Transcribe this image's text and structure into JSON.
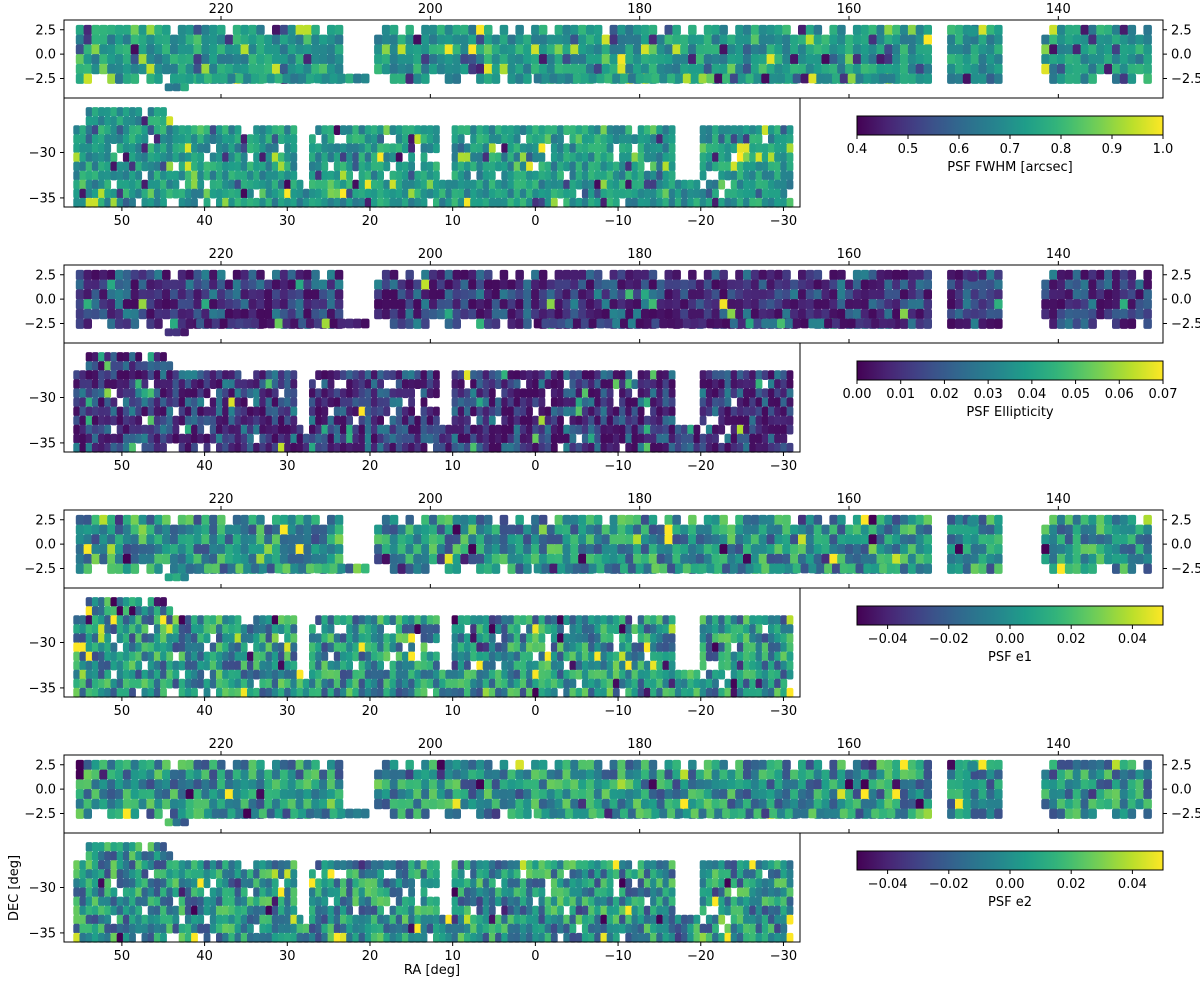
{
  "xlabel": "RA [deg]",
  "ylabel": "DEC [deg]",
  "chart_data": [
    {
      "type": "heatmap",
      "quantity": "PSF FWHM",
      "colorbar": {
        "label": "PSF FWHM [arcsec]",
        "vmin": 0.4,
        "vmax": 1.0,
        "ticks": [
          0.4,
          0.5,
          0.6,
          0.7,
          0.8,
          0.9,
          1.0
        ],
        "tick_labels": [
          "0.4",
          "0.5",
          "0.6",
          "0.7",
          "0.8",
          "0.9",
          "1.0"
        ],
        "colormap": "viridis"
      },
      "north_patch": {
        "xlim": [
          235,
          130
        ],
        "ylim": [
          -4.5,
          3.5
        ],
        "xticks": [
          220,
          200,
          180,
          160,
          140
        ],
        "xtick_labels": [
          "220",
          "200",
          "180",
          "160",
          "140"
        ],
        "yticks": [
          2.5,
          0.0,
          -2.5
        ],
        "ytick_labels": [
          "2.5",
          "0.0",
          "−2.5"
        ]
      },
      "south_patch": {
        "xlim": [
          57,
          -32
        ],
        "ylim": [
          -36,
          -24
        ],
        "xticks": [
          50,
          40,
          30,
          20,
          10,
          0,
          -10,
          -20,
          -30
        ],
        "xtick_labels": [
          "50",
          "40",
          "30",
          "20",
          "10",
          "0",
          "−10",
          "−20",
          "−30"
        ],
        "yticks": [
          -30,
          -35
        ],
        "ytick_labels": [
          "−30",
          "−35"
        ]
      },
      "typical_value": 0.72
    },
    {
      "type": "heatmap",
      "quantity": "PSF Ellipticity",
      "colorbar": {
        "label": "PSF Ellipticity",
        "vmin": 0.0,
        "vmax": 0.07,
        "ticks": [
          0.0,
          0.01,
          0.02,
          0.03,
          0.04,
          0.05,
          0.06,
          0.07
        ],
        "tick_labels": [
          "0.00",
          "0.01",
          "0.02",
          "0.03",
          "0.04",
          "0.05",
          "0.06",
          "0.07"
        ],
        "colormap": "viridis"
      },
      "north_patch": {
        "xlim": [
          235,
          130
        ],
        "ylim": [
          -4.5,
          3.5
        ],
        "xticks": [
          220,
          200,
          180,
          160,
          140
        ],
        "xtick_labels": [
          "220",
          "200",
          "180",
          "160",
          "140"
        ],
        "yticks": [
          2.5,
          0.0,
          -2.5
        ],
        "ytick_labels": [
          "2.5",
          "0.0",
          "−2.5"
        ]
      },
      "south_patch": {
        "xlim": [
          57,
          -32
        ],
        "ylim": [
          -36,
          -24
        ],
        "xticks": [
          50,
          40,
          30,
          20,
          10,
          0,
          -10,
          -20,
          -30
        ],
        "xtick_labels": [
          "50",
          "40",
          "30",
          "20",
          "10",
          "0",
          "−10",
          "−20",
          "−30"
        ],
        "yticks": [
          -30,
          -35
        ],
        "ytick_labels": [
          "−30",
          "−35"
        ]
      },
      "typical_value": 0.012
    },
    {
      "type": "heatmap",
      "quantity": "PSF e1",
      "colorbar": {
        "label": "PSF e1",
        "vmin": -0.05,
        "vmax": 0.05,
        "ticks": [
          -0.04,
          -0.02,
          0.0,
          0.02,
          0.04
        ],
        "tick_labels": [
          "−0.04",
          "−0.02",
          "0.00",
          "0.02",
          "0.04"
        ],
        "colormap": "viridis"
      },
      "north_patch": {
        "xlim": [
          235,
          130
        ],
        "ylim": [
          -4.5,
          3.5
        ],
        "xticks": [
          220,
          200,
          180,
          160,
          140
        ],
        "xtick_labels": [
          "220",
          "200",
          "180",
          "160",
          "140"
        ],
        "yticks": [
          2.5,
          0.0,
          -2.5
        ],
        "ytick_labels": [
          "2.5",
          "0.0",
          "−2.5"
        ]
      },
      "south_patch": {
        "xlim": [
          57,
          -32
        ],
        "ylim": [
          -36,
          -24
        ],
        "xticks": [
          50,
          40,
          30,
          20,
          10,
          0,
          -10,
          -20,
          -30
        ],
        "xtick_labels": [
          "50",
          "40",
          "30",
          "20",
          "10",
          "0",
          "−10",
          "−20",
          "−30"
        ],
        "yticks": [
          -30,
          -35
        ],
        "ytick_labels": [
          "−30",
          "−35"
        ]
      },
      "typical_value": 0.0
    },
    {
      "type": "heatmap",
      "quantity": "PSF e2",
      "colorbar": {
        "label": "PSF e2",
        "vmin": -0.05,
        "vmax": 0.05,
        "ticks": [
          -0.04,
          -0.02,
          0.0,
          0.02,
          0.04
        ],
        "tick_labels": [
          "−0.04",
          "−0.02",
          "0.00",
          "0.02",
          "0.04"
        ],
        "colormap": "viridis"
      },
      "north_patch": {
        "xlim": [
          235,
          130
        ],
        "ylim": [
          -4.5,
          3.5
        ],
        "xticks": [
          220,
          200,
          180,
          160,
          140
        ],
        "xtick_labels": [
          "220",
          "200",
          "180",
          "160",
          "140"
        ],
        "yticks": [
          2.5,
          0.0,
          -2.5
        ],
        "ytick_labels": [
          "2.5",
          "0.0",
          "−2.5"
        ]
      },
      "south_patch": {
        "xlim": [
          57,
          -32
        ],
        "ylim": [
          -36,
          -24
        ],
        "xticks": [
          50,
          40,
          30,
          20,
          10,
          0,
          -10,
          -20,
          -30
        ],
        "xtick_labels": [
          "50",
          "40",
          "30",
          "20",
          "10",
          "0",
          "−10",
          "−20",
          "−30"
        ],
        "yticks": [
          -30,
          -35
        ],
        "ytick_labels": [
          "−30",
          "−35"
        ]
      },
      "typical_value": 0.0
    }
  ],
  "footprint": {
    "north_gaps_ra": [
      [
        205.5,
        208.2
      ],
      [
        150.8,
        152.3
      ],
      [
        145.5,
        141.9
      ]
    ],
    "north_isolated_field_ra": 148.2,
    "south_gaps_ra": [
      [
        29.0,
        27.2
      ],
      [
        11.5,
        10.4
      ],
      [
        -17.0,
        -19.5
      ]
    ]
  },
  "colors": {
    "background": "#ffffff",
    "axis": "#000000"
  }
}
